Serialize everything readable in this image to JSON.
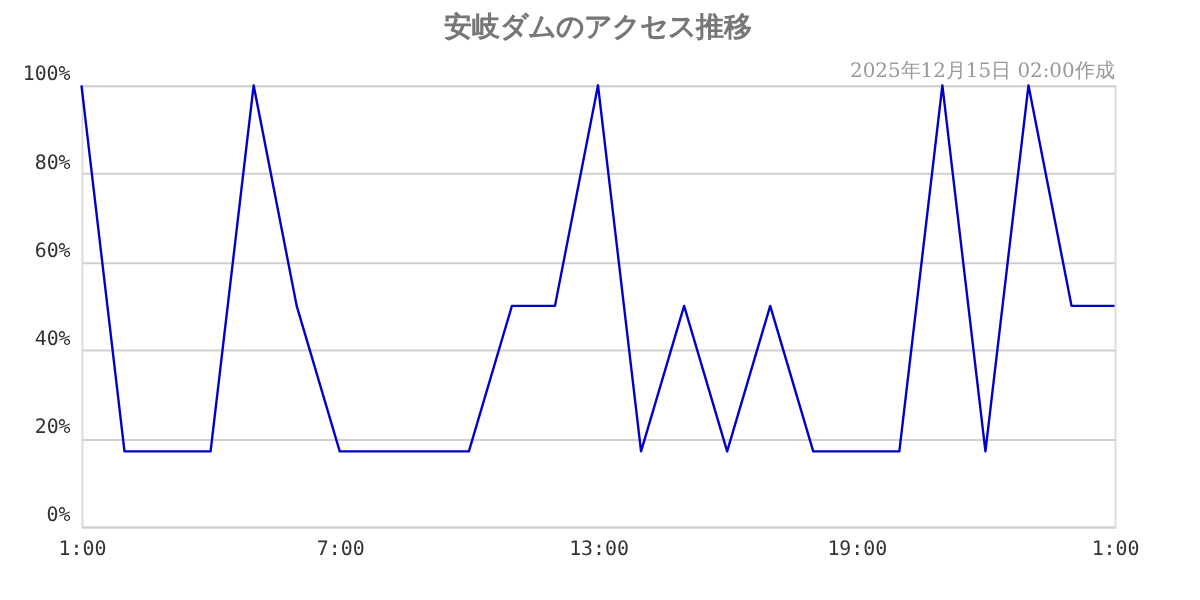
{
  "chart_data": {
    "type": "line",
    "title": "安岐ダムのアクセス推移",
    "annotations": [
      "2025年12月15日 02:00作成"
    ],
    "x": [
      "2025-12-14T01:00",
      "2025-12-14T02:00",
      "2025-12-14T03:00",
      "2025-12-14T04:00",
      "2025-12-14T05:00",
      "2025-12-14T06:00",
      "2025-12-14T07:00",
      "2025-12-14T08:00",
      "2025-12-14T09:00",
      "2025-12-14T10:00",
      "2025-12-14T11:00",
      "2025-12-14T12:00",
      "2025-12-14T13:00",
      "2025-12-14T14:00",
      "2025-12-14T15:00",
      "2025-12-14T16:00",
      "2025-12-14T17:00",
      "2025-12-14T18:00",
      "2025-12-14T19:00",
      "2025-12-14T20:00",
      "2025-12-14T21:00",
      "2025-12-14T22:00",
      "2025-12-14T23:00",
      "2025-12-15T00:00",
      "2025-12-15T01:00"
    ],
    "series": [
      {
        "color": "#0000cc",
        "values": [
          100,
          17,
          17,
          17,
          100,
          50,
          17,
          17,
          17,
          17,
          50,
          50,
          100,
          17,
          50,
          17,
          50,
          17,
          17,
          17,
          100,
          17,
          100,
          50,
          50
        ]
      }
    ],
    "xlim": [
      "2025-12-14T01:00",
      "2025-12-15T01:00"
    ],
    "xticks": [
      {
        "value": "2025-12-14T01:00",
        "label": "1:00"
      },
      {
        "value": "2025-12-14T07:00",
        "label": "7:00"
      },
      {
        "value": "2025-12-14T13:00",
        "label": "13:00"
      },
      {
        "value": "2025-12-14T19:00",
        "label": "19:00"
      },
      {
        "value": "2025-12-15T01:00",
        "label": "1:00"
      }
    ],
    "ylim": [
      0,
      100
    ],
    "yticks": [
      {
        "value": 0,
        "label": "0%"
      },
      {
        "value": 20,
        "label": "20%"
      },
      {
        "value": 40,
        "label": "40%"
      },
      {
        "value": 60,
        "label": "60%"
      },
      {
        "value": 80,
        "label": "80%"
      },
      {
        "value": 100,
        "label": "100%"
      }
    ],
    "grid": "y",
    "legend": false,
    "marker": "none",
    "line_style": "solid"
  }
}
